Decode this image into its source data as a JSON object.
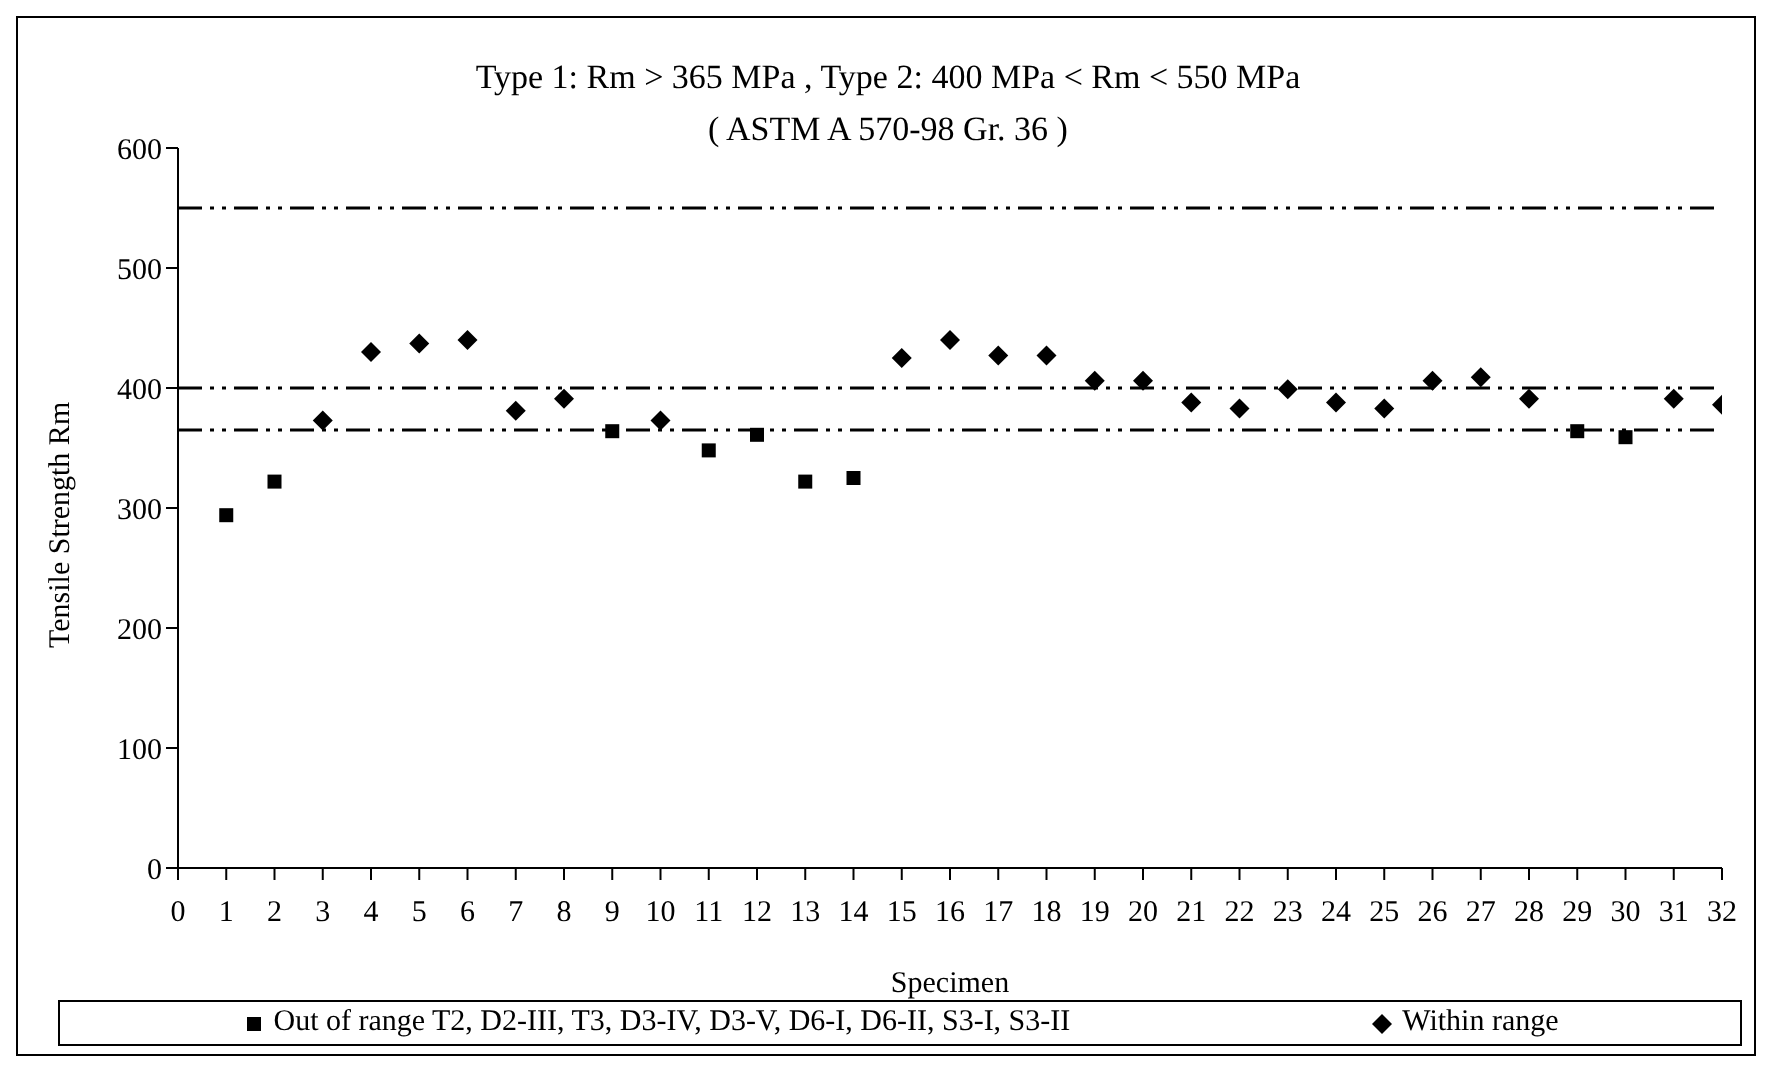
{
  "chart_data": {
    "type": "scatter",
    "title": "Type 1:  Rm > 365 MPa , Type 2:  400 MPa < Rm < 550 MPa",
    "subtitle": "( ASTM A 570-98 Gr. 36 )",
    "xlabel": "Specimen",
    "ylabel": "Tensile Strength Rm",
    "xlim": [
      0,
      32
    ],
    "xticks": [
      0,
      1,
      2,
      3,
      4,
      5,
      6,
      7,
      8,
      9,
      10,
      11,
      12,
      13,
      14,
      15,
      16,
      17,
      18,
      19,
      20,
      21,
      22,
      23,
      24,
      25,
      26,
      27,
      28,
      29,
      30,
      31,
      32
    ],
    "ylim": [
      0,
      600
    ],
    "yticks": [
      0,
      100,
      200,
      300,
      400,
      500,
      600
    ],
    "grid": false,
    "legend": "bottom",
    "series": [
      {
        "name": "Out of range T2, D2-III, T3, D3-IV, D3-V, D6-I, D6-II, S3-I, S3-II",
        "color": "#000000",
        "marker": "square",
        "x": [
          1,
          2,
          9,
          11,
          12,
          13,
          14,
          29,
          30
        ],
        "values": [
          294,
          322,
          364,
          348,
          361,
          322,
          325,
          364,
          359
        ]
      },
      {
        "name": "Within range",
        "color": "#000000",
        "marker": "diamond",
        "x": [
          3,
          4,
          5,
          6,
          7,
          8,
          10,
          15,
          16,
          17,
          18,
          19,
          20,
          21,
          22,
          23,
          24,
          25,
          26,
          27,
          28,
          31,
          32
        ],
        "values": [
          373,
          430,
          437,
          440,
          381,
          391,
          373,
          425,
          440,
          427,
          427,
          406,
          406,
          388,
          383,
          399,
          388,
          383,
          406,
          409,
          391,
          391,
          386
        ]
      }
    ],
    "ref_lines": [
      {
        "axis": "y",
        "value": 365,
        "label": null,
        "color": "#000000"
      },
      {
        "axis": "y",
        "value": 400,
        "label": null,
        "color": "#000000"
      },
      {
        "axis": "y",
        "value": 550,
        "label": null,
        "color": "#000000"
      }
    ]
  }
}
